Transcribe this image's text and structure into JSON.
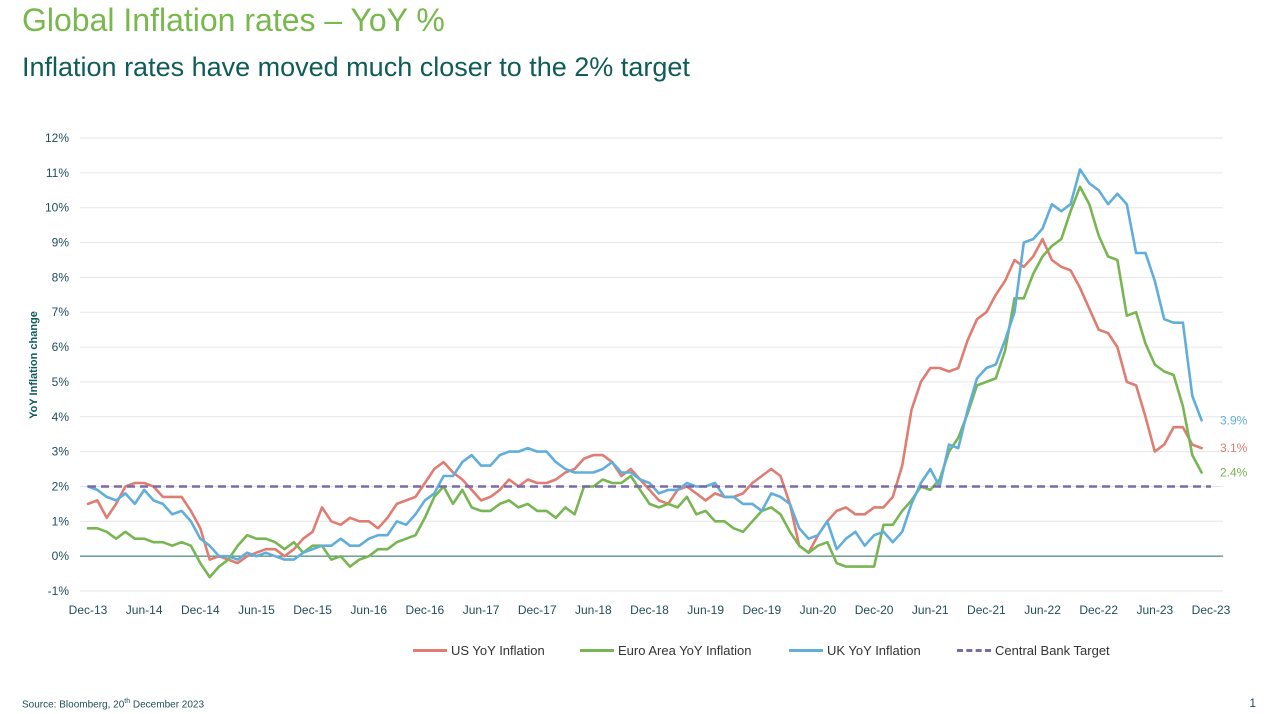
{
  "header": {
    "title": "Global Inflation rates – YoY %",
    "subtitle": "Inflation rates have moved much closer to the 2% target"
  },
  "footer": {
    "source_prefix": "Source: Bloomberg, 20",
    "source_sup": "th",
    "source_suffix": " December 2023",
    "page_number": "1"
  },
  "colors": {
    "us": "#e07d72",
    "euro": "#77b652",
    "uk": "#62aedb",
    "target": "#7a6aa6",
    "grid": "#e6e6e6",
    "zero_line": "#1f6b5e"
  },
  "chart_data": {
    "type": "line",
    "ylabel": "YoY Inflation change",
    "xlabel": "",
    "ylim": [
      -1,
      12
    ],
    "yticks": [
      -1,
      0,
      1,
      2,
      3,
      4,
      5,
      6,
      7,
      8,
      9,
      10,
      11,
      12
    ],
    "ytick_labels": [
      "-1%",
      "0%",
      "1%",
      "2%",
      "3%",
      "4%",
      "5%",
      "6%",
      "7%",
      "8%",
      "9%",
      "10%",
      "11%",
      "12%"
    ],
    "x_start": "Dec-13",
    "x_end": "Dec-23",
    "x_tick_labels": [
      "Dec-13",
      "Jun-14",
      "Dec-14",
      "Jun-15",
      "Dec-15",
      "Jun-16",
      "Dec-16",
      "Jun-17",
      "Dec-17",
      "Jun-18",
      "Dec-18",
      "Jun-19",
      "Dec-19",
      "Jun-20",
      "Dec-20",
      "Jun-21",
      "Dec-21",
      "Jun-22",
      "Dec-22",
      "Jun-23",
      "Dec-23"
    ],
    "x_tick_months": [
      0,
      6,
      12,
      18,
      24,
      30,
      36,
      42,
      48,
      54,
      60,
      66,
      72,
      78,
      84,
      90,
      96,
      102,
      108,
      114,
      120
    ],
    "legend": [
      "US YoY Inflation",
      "Euro Area YoY Inflation",
      "UK YoY Inflation",
      "Central Bank Target"
    ],
    "legend_position": "bottom",
    "series": [
      {
        "name": "US YoY Inflation",
        "key": "us",
        "end_label": "3.1%",
        "values": [
          1.5,
          1.6,
          1.1,
          1.5,
          2.0,
          2.1,
          2.1,
          2.0,
          1.7,
          1.7,
          1.7,
          1.3,
          0.8,
          -0.1,
          0.0,
          -0.1,
          -0.2,
          0.0,
          0.1,
          0.2,
          0.2,
          0.0,
          0.2,
          0.5,
          0.7,
          1.4,
          1.0,
          0.9,
          1.1,
          1.0,
          1.0,
          0.8,
          1.1,
          1.5,
          1.6,
          1.7,
          2.1,
          2.5,
          2.7,
          2.4,
          2.2,
          1.9,
          1.6,
          1.7,
          1.9,
          2.2,
          2.0,
          2.2,
          2.1,
          2.1,
          2.2,
          2.4,
          2.5,
          2.8,
          2.9,
          2.9,
          2.7,
          2.3,
          2.5,
          2.2,
          1.9,
          1.6,
          1.5,
          1.9,
          2.0,
          1.8,
          1.6,
          1.8,
          1.7,
          1.7,
          1.8,
          2.1,
          2.3,
          2.5,
          2.3,
          1.5,
          0.3,
          0.1,
          0.6,
          1.0,
          1.3,
          1.4,
          1.2,
          1.2,
          1.4,
          1.4,
          1.7,
          2.6,
          4.2,
          5.0,
          5.4,
          5.4,
          5.3,
          5.4,
          6.2,
          6.8,
          7.0,
          7.5,
          7.9,
          8.5,
          8.3,
          8.6,
          9.1,
          8.5,
          8.3,
          8.2,
          7.7,
          7.1,
          6.5,
          6.4,
          6.0,
          5.0,
          4.9,
          4.0,
          3.0,
          3.2,
          3.7,
          3.7,
          3.2,
          3.1
        ]
      },
      {
        "name": "Euro Area YoY Inflation",
        "key": "euro",
        "end_label": "2.4%",
        "values": [
          0.8,
          0.8,
          0.7,
          0.5,
          0.7,
          0.5,
          0.5,
          0.4,
          0.4,
          0.3,
          0.4,
          0.3,
          -0.2,
          -0.6,
          -0.3,
          -0.1,
          0.3,
          0.6,
          0.5,
          0.5,
          0.4,
          0.2,
          0.4,
          0.1,
          0.3,
          0.3,
          -0.1,
          0.0,
          -0.3,
          -0.1,
          0.0,
          0.2,
          0.2,
          0.4,
          0.5,
          0.6,
          1.1,
          1.7,
          2.0,
          1.5,
          1.9,
          1.4,
          1.3,
          1.3,
          1.5,
          1.6,
          1.4,
          1.5,
          1.3,
          1.3,
          1.1,
          1.4,
          1.2,
          2.0,
          2.0,
          2.2,
          2.1,
          2.1,
          2.3,
          1.9,
          1.5,
          1.4,
          1.5,
          1.4,
          1.7,
          1.2,
          1.3,
          1.0,
          1.0,
          0.8,
          0.7,
          1.0,
          1.3,
          1.4,
          1.2,
          0.7,
          0.3,
          0.1,
          0.3,
          0.4,
          -0.2,
          -0.3,
          -0.3,
          -0.3,
          -0.3,
          0.9,
          0.9,
          1.3,
          1.6,
          2.0,
          1.9,
          2.2,
          3.0,
          3.4,
          4.1,
          4.9,
          5.0,
          5.1,
          5.9,
          7.4,
          7.4,
          8.1,
          8.6,
          8.9,
          9.1,
          9.9,
          10.6,
          10.1,
          9.2,
          8.6,
          8.5,
          6.9,
          7.0,
          6.1,
          5.5,
          5.3,
          5.2,
          4.3,
          2.9,
          2.4
        ]
      },
      {
        "name": "UK YoY Inflation",
        "key": "uk",
        "end_label": "3.9%",
        "values": [
          2.0,
          1.9,
          1.7,
          1.6,
          1.8,
          1.5,
          1.9,
          1.6,
          1.5,
          1.2,
          1.3,
          1.0,
          0.5,
          0.3,
          0.0,
          0.0,
          -0.1,
          0.1,
          0.0,
          0.1,
          0.0,
          -0.1,
          -0.1,
          0.1,
          0.2,
          0.3,
          0.3,
          0.5,
          0.3,
          0.3,
          0.5,
          0.6,
          0.6,
          1.0,
          0.9,
          1.2,
          1.6,
          1.8,
          2.3,
          2.3,
          2.7,
          2.9,
          2.6,
          2.6,
          2.9,
          3.0,
          3.0,
          3.1,
          3.0,
          3.0,
          2.7,
          2.5,
          2.4,
          2.4,
          2.4,
          2.5,
          2.7,
          2.4,
          2.4,
          2.2,
          2.1,
          1.8,
          1.9,
          1.9,
          2.1,
          2.0,
          2.0,
          2.1,
          1.7,
          1.7,
          1.5,
          1.5,
          1.3,
          1.8,
          1.7,
          1.5,
          0.8,
          0.5,
          0.6,
          1.0,
          0.2,
          0.5,
          0.7,
          0.3,
          0.6,
          0.7,
          0.4,
          0.7,
          1.5,
          2.1,
          2.5,
          2.0,
          3.2,
          3.1,
          4.2,
          5.1,
          5.4,
          5.5,
          6.2,
          7.0,
          9.0,
          9.1,
          9.4,
          10.1,
          9.9,
          10.1,
          11.1,
          10.7,
          10.5,
          10.1,
          10.4,
          10.1,
          8.7,
          8.7,
          7.9,
          6.8,
          6.7,
          6.7,
          4.6,
          3.9
        ]
      },
      {
        "name": "Central Bank Target",
        "key": "target",
        "constant": 2
      }
    ]
  }
}
